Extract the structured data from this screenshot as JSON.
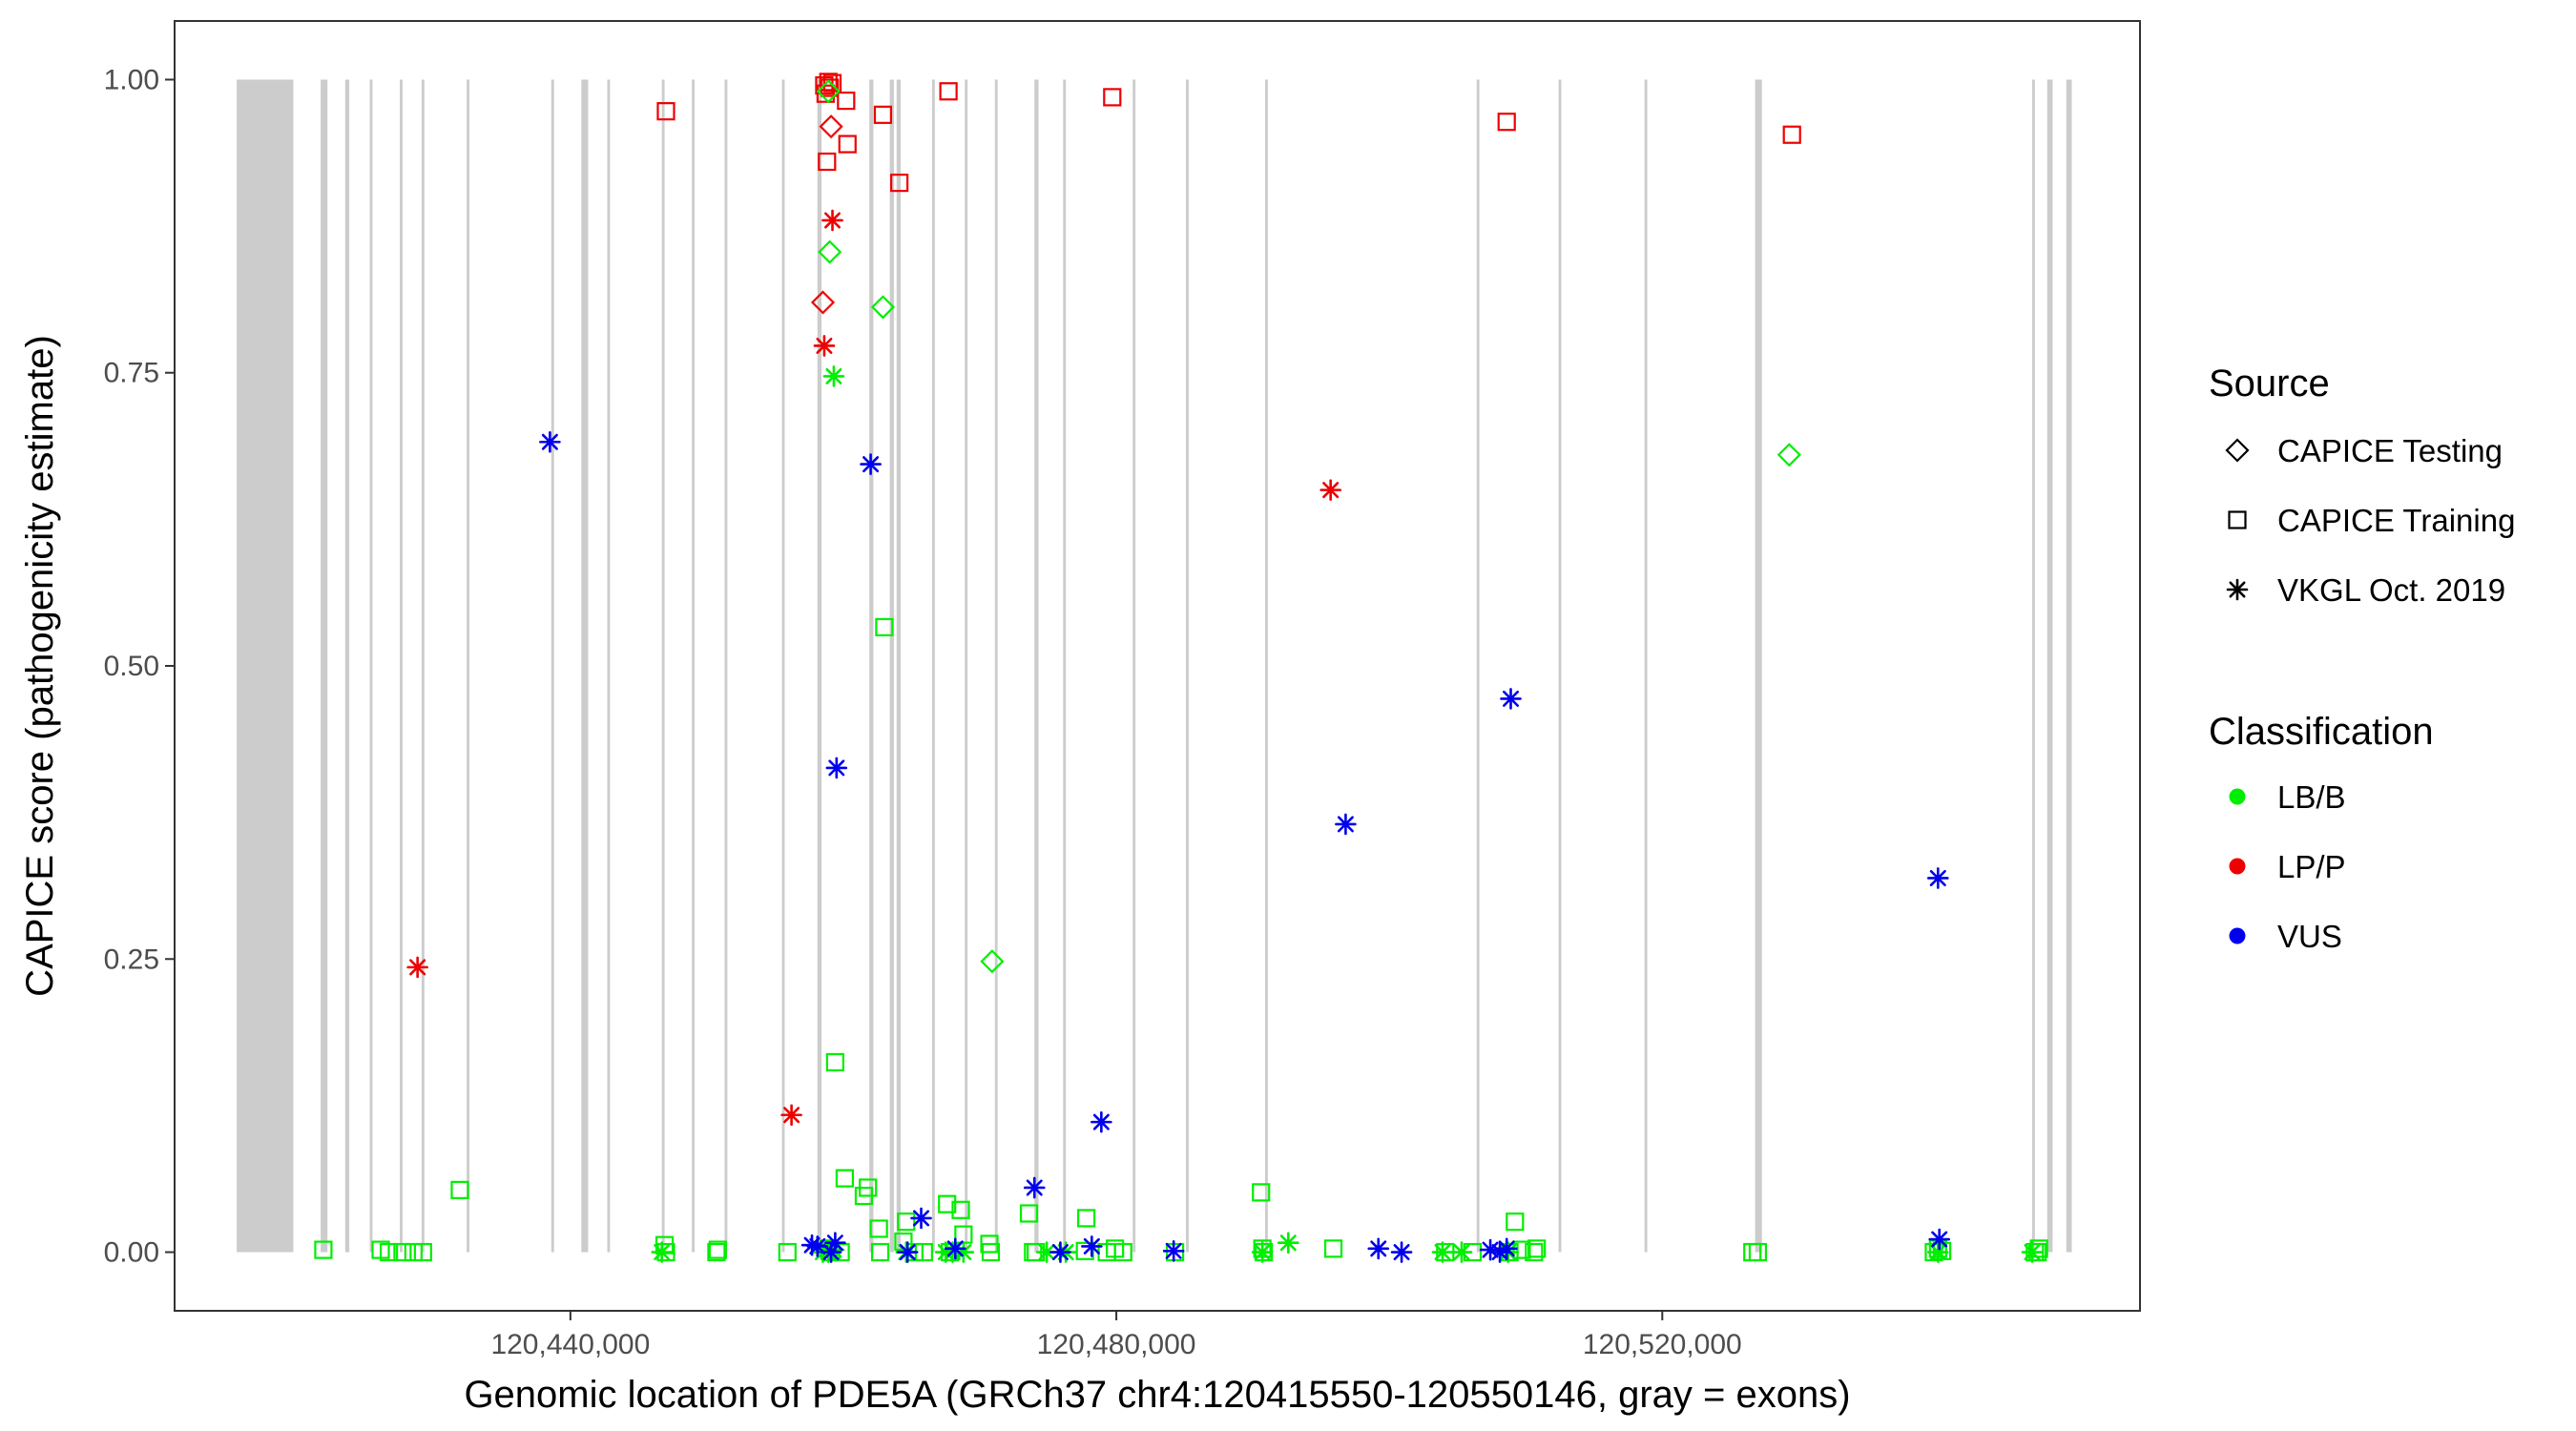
{
  "chart_data": {
    "type": "scatter",
    "xlabel": "Genomic location of PDE5A (GRCh37 chr4:120415550-120550146, gray = exons)",
    "ylabel": "CAPICE score (pathogenicity estimate)",
    "xlim": [
      120411000,
      120555000
    ],
    "ylim": [
      -0.05,
      1.05
    ],
    "x_ticks": [
      120440000,
      120480000,
      120520000
    ],
    "x_tick_labels": [
      "120,440,000",
      "120,480,000",
      "120,520,000"
    ],
    "y_ticks": [
      0,
      0.25,
      0.5,
      0.75,
      1.0
    ],
    "y_tick_labels": [
      "0.00",
      "0.25",
      "0.50",
      "0.75",
      "1.00"
    ],
    "grid": false,
    "legend": {
      "placement": "right",
      "source_title": "Source",
      "source_items": [
        {
          "label": "CAPICE Testing",
          "shape": "diamond"
        },
        {
          "label": "CAPICE Training",
          "shape": "square"
        },
        {
          "label": "VKGL Oct. 2019",
          "shape": "asterisk"
        }
      ],
      "class_title": "Classification",
      "class_items": [
        {
          "label": "LB/B",
          "color": "#00ee00"
        },
        {
          "label": "LP/P",
          "color": "#ee0000"
        },
        {
          "label": "VUS",
          "color": "#0000ee"
        }
      ]
    },
    "colors": {
      "LB/B": "#00ee00",
      "LP/P": "#ee0000",
      "VUS": "#0000ee",
      "exon": "#cccccc"
    },
    "exons": [
      [
        120415550,
        120419700
      ],
      [
        120421700,
        120422200
      ],
      [
        120423500,
        120423800
      ],
      [
        120425300,
        120425500
      ],
      [
        120427500,
        120427700
      ],
      [
        120429100,
        120429300
      ],
      [
        120432400,
        120432600
      ],
      [
        120438600,
        120438800
      ],
      [
        120440800,
        120441300
      ],
      [
        120442700,
        120442900
      ],
      [
        120446700,
        120446900
      ],
      [
        120448900,
        120449100
      ],
      [
        120451300,
        120451500
      ],
      [
        120455500,
        120455700
      ],
      [
        120458100,
        120458400
      ],
      [
        120461900,
        120462200
      ],
      [
        120463400,
        120463700
      ],
      [
        120463900,
        120464200
      ],
      [
        120466500,
        120466700
      ],
      [
        120468900,
        120469100
      ],
      [
        120471100,
        120471300
      ],
      [
        120474000,
        120474300
      ],
      [
        120476100,
        120476300
      ],
      [
        120481200,
        120481400
      ],
      [
        120485100,
        120485300
      ],
      [
        120490900,
        120491100
      ],
      [
        120506400,
        120506600
      ],
      [
        120512400,
        120512600
      ],
      [
        120518700,
        120518900
      ],
      [
        120526800,
        120527300
      ],
      [
        120547100,
        120547300
      ],
      [
        120548200,
        120548600
      ],
      [
        120549600,
        120550000
      ]
    ],
    "series": [
      {
        "name": "CAPICE Training",
        "classification": "LP/P",
        "shape": "square",
        "x": [
          120447000,
          120458600,
          120458700,
          120458800,
          120458900,
          120459000,
          120459200,
          120460200,
          120460300,
          120462900,
          120464100,
          120467700,
          120479700,
          120508600,
          120529500
        ],
        "y": [
          0.973,
          0.995,
          0.988,
          0.93,
          0.998,
          0.993,
          0.997,
          0.982,
          0.945,
          0.97,
          0.912,
          0.99,
          0.985,
          0.964,
          0.953
        ]
      },
      {
        "name": "CAPICE Testing",
        "classification": "LP/P",
        "shape": "diamond",
        "x": [
          120458500,
          120459100
        ],
        "y": [
          0.81,
          0.96
        ]
      },
      {
        "name": "VKGL Oct. 2019",
        "classification": "LP/P",
        "shape": "asterisk",
        "x": [
          120428800,
          120456200,
          120458600,
          120459200,
          120495700
        ],
        "y": [
          0.243,
          0.117,
          0.773,
          0.88,
          0.65
        ]
      },
      {
        "name": "CAPICE Testing",
        "classification": "LB/B",
        "shape": "diamond",
        "x": [
          120458900,
          120459000,
          120462900,
          120470900,
          120529300
        ],
        "y": [
          0.99,
          0.853,
          0.806,
          0.248,
          0.68
        ]
      },
      {
        "name": "VKGL Oct. 2019",
        "classification": "LB/B",
        "shape": "asterisk",
        "x": [
          120459300,
          120446700,
          120458500,
          120458900,
          120459300,
          120464600,
          120467500,
          120468000,
          120468800,
          120474900,
          120476300,
          120490700,
          120492600,
          120503900,
          120505300,
          120508700,
          120540200,
          120547100
        ],
        "y": [
          0.747,
          0.0,
          0.0,
          0.0,
          0.002,
          0.0,
          0.0,
          0.0,
          0.0,
          0.0,
          0.0,
          0.0,
          0.008,
          0.0,
          0.0,
          0.0,
          0.0,
          0.0
        ]
      },
      {
        "name": "CAPICE Training",
        "classification": "LB/B",
        "shape": "square",
        "x": [
          120421900,
          120426100,
          120426700,
          120427700,
          120428500,
          120429200,
          120431900,
          120446900,
          120447000,
          120450700,
          120450800,
          120455900,
          120458900,
          120459100,
          120459400,
          120459800,
          120460100,
          120461500,
          120461800,
          120462600,
          120462700,
          120463000,
          120464400,
          120464600,
          120465200,
          120465900,
          120467600,
          120467800,
          120468600,
          120468800,
          120470700,
          120470800,
          120473600,
          120473900,
          120474100,
          120477700,
          120477800,
          120479300,
          120479900,
          120480500,
          120484300,
          120490600,
          120490700,
          120490800,
          120495900,
          120504100,
          120506100,
          120508800,
          120509200,
          120509700,
          120510600,
          120510800,
          120526600,
          120527000,
          120539900,
          120540200,
          120540500,
          120547300,
          120547500,
          120547600
        ],
        "y": [
          0.002,
          0.002,
          0.0,
          0.0,
          0.0,
          0.0,
          0.053,
          0.006,
          0.0,
          0.0,
          0.002,
          0.0,
          0.003,
          0.0,
          0.162,
          0.0,
          0.063,
          0.048,
          0.055,
          0.02,
          0.0,
          0.533,
          0.009,
          0.026,
          0.0,
          0.0,
          0.041,
          0.0,
          0.036,
          0.015,
          0.007,
          0.0,
          0.033,
          0.0,
          0.0,
          0.001,
          0.029,
          0.0,
          0.003,
          0.0,
          0.0,
          0.051,
          0.003,
          0.0,
          0.003,
          0.0,
          0.0,
          0.0,
          0.026,
          0.002,
          0.0,
          0.003,
          0.0,
          0.0,
          0.0,
          0.003,
          0.001,
          0.0,
          0.0,
          0.003
        ]
      },
      {
        "name": "VKGL Oct. 2019",
        "classification": "VUS",
        "shape": "asterisk",
        "x": [
          120438500,
          120459500,
          120462000,
          120508900,
          120496800,
          120540200,
          120474000,
          120478900,
          120465700,
          120457700,
          120458100,
          120459100,
          120459400,
          120464700,
          120468200,
          120475900,
          120478200,
          120484200,
          120499200,
          120500900,
          120507400,
          120508100,
          120508600,
          120540300
        ],
        "y": [
          0.691,
          0.413,
          0.672,
          0.472,
          0.365,
          0.319,
          0.055,
          0.111,
          0.029,
          0.006,
          0.005,
          0.0,
          0.008,
          0.0,
          0.003,
          0.0,
          0.005,
          0.001,
          0.003,
          0.0,
          0.002,
          0.0,
          0.003,
          0.011
        ]
      }
    ]
  }
}
